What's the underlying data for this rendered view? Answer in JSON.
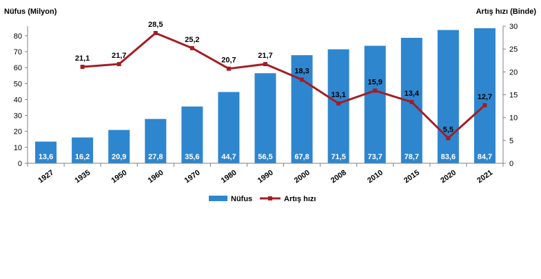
{
  "colors": {
    "bar": "#2e86cf",
    "line": "#a31d24",
    "axis": "#7f7f7f",
    "label_light": "#ffffff",
    "label_dark": "#000000"
  },
  "chart_data": {
    "type": "bar+line",
    "categories": [
      "1927",
      "1935",
      "1950",
      "1960",
      "1970",
      "1980",
      "1990",
      "2000",
      "2008",
      "2010",
      "2015",
      "2020",
      "2021"
    ],
    "series": [
      {
        "name": "Nüfus",
        "type": "bar",
        "axis": "left",
        "values": [
          13.6,
          16.2,
          20.9,
          27.8,
          35.6,
          44.7,
          56.5,
          67.8,
          71.5,
          73.7,
          78.7,
          83.6,
          84.7
        ],
        "labels": [
          "13,6",
          "16,2",
          "20,9",
          "27,8",
          "35,6",
          "44,7",
          "56,5",
          "67,8",
          "71,5",
          "73,7",
          "78,7",
          "83,6",
          "84,7"
        ]
      },
      {
        "name": "Artış hızı",
        "type": "line",
        "axis": "right",
        "values": [
          null,
          21.1,
          21.7,
          28.5,
          25.2,
          20.7,
          21.7,
          18.3,
          13.1,
          15.9,
          13.4,
          5.5,
          12.7
        ],
        "labels": [
          "",
          "21,1",
          "21,7",
          "28,5",
          "25,2",
          "20,7",
          "21,7",
          "18,3",
          "13,1",
          "15,9",
          "13,4",
          "5,5",
          "12,7"
        ],
        "label_light": [
          false,
          false,
          false,
          false,
          false,
          false,
          false,
          true,
          true,
          true,
          true,
          true,
          true
        ]
      }
    ],
    "ylabel_left": "Nüfus (Milyon)",
    "ylabel_right": "Artış hızı (Binde)",
    "ylim_left": [
      0,
      86
    ],
    "ylim_right": [
      0,
      30
    ],
    "yticks_left": [
      "0",
      "10",
      "20",
      "30",
      "40",
      "50",
      "60",
      "70",
      "80"
    ],
    "yticks_right": [
      "0",
      "5",
      "10",
      "15",
      "20",
      "25",
      "30"
    ],
    "grid": false,
    "legend": {
      "position": "bottom",
      "entries": [
        "Nüfus",
        "Artış hızı"
      ]
    }
  }
}
